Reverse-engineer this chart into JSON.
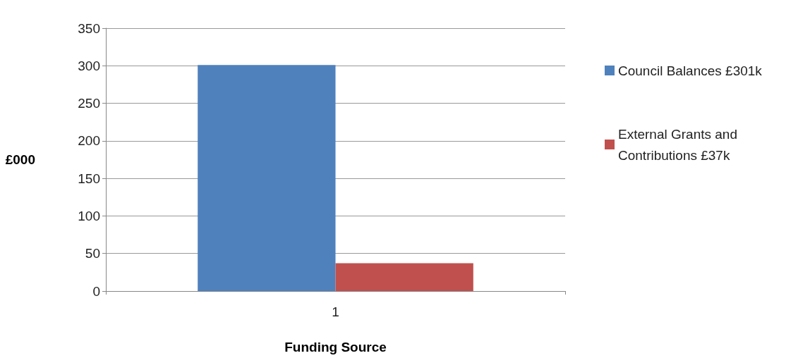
{
  "chart_data": {
    "type": "bar",
    "xlabel": "Funding Source",
    "ylabel": "£000",
    "categories": [
      "1"
    ],
    "series": [
      {
        "name": "Council Balances £301k",
        "color": "#4f81bd",
        "values": [
          301
        ]
      },
      {
        "name": "External Grants and Contributions £37k",
        "color": "#c0504d",
        "values": [
          37
        ]
      }
    ],
    "ylim": [
      0,
      350
    ],
    "yticks": [
      0,
      50,
      100,
      150,
      200,
      250,
      300,
      350
    ],
    "grid": "y",
    "legend": "right"
  }
}
